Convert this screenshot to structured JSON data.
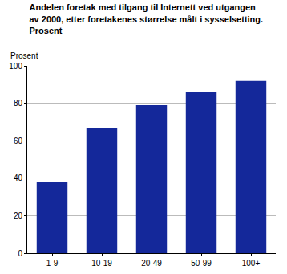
{
  "chart_data": {
    "type": "bar",
    "title": "Andelen foretak med tilgang til Internett ved utgangen\nav 2000, etter foretakenes størrelse målt i sysselsetting.\nProsent",
    "y_label": "Prosent",
    "categories": [
      "1-9",
      "10-19",
      "20-49",
      "50-99",
      "100+"
    ],
    "values": [
      38,
      67,
      79,
      86,
      92
    ],
    "color": "#14289a",
    "ylim": [
      0,
      100
    ],
    "yticks": [
      0,
      20,
      40,
      60,
      80,
      100
    ],
    "grid": true
  }
}
